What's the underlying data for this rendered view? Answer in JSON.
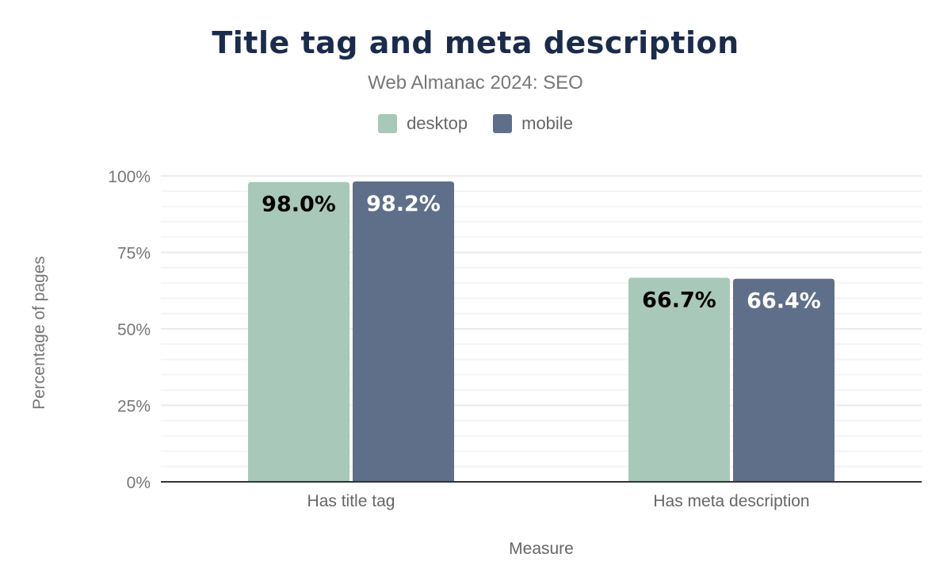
{
  "chart_data": {
    "type": "bar",
    "title": "Title tag and meta description",
    "subtitle": "Web Almanac 2024: SEO",
    "xlabel": "Measure",
    "ylabel": "Percentage of pages",
    "categories": [
      "Has title tag",
      "Has meta description"
    ],
    "series": [
      {
        "name": "desktop",
        "values": [
          98.0,
          66.7
        ],
        "labels": [
          "98.0%",
          "66.7%"
        ],
        "color": "#a8c8b9",
        "label_color": "#000000"
      },
      {
        "name": "mobile",
        "values": [
          98.2,
          66.4
        ],
        "labels": [
          "98.2%",
          "66.4%"
        ],
        "color": "#5f6f8a",
        "label_color": "#ffffff"
      }
    ],
    "ylim": [
      0,
      100
    ],
    "yticks": [
      0,
      25,
      50,
      75,
      100
    ],
    "ytick_labels": [
      "0%",
      "25%",
      "50%",
      "75%",
      "100%"
    ],
    "grid": true,
    "legend_position": "top"
  }
}
